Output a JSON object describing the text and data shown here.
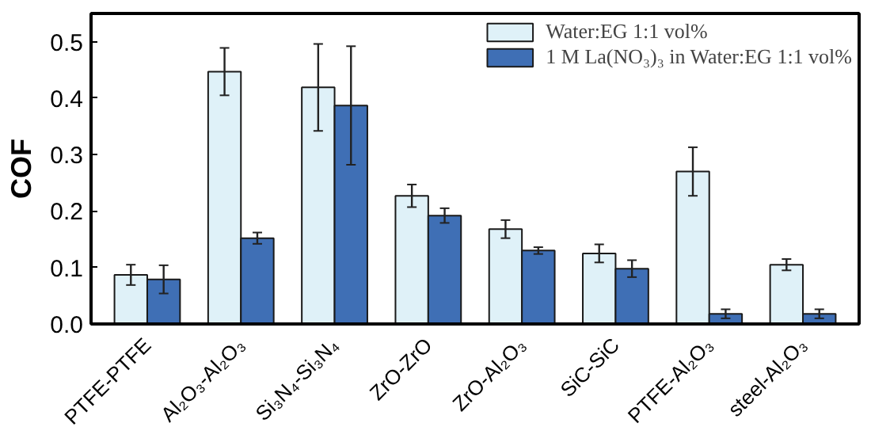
{
  "chart_data": {
    "type": "bar",
    "ylabel": "COF",
    "categories": [
      "PTFE-PTFE",
      "Al₂O₃-Al₂O₃",
      "Si₃N₄-Si₃N₄",
      "ZrO-ZrO",
      "ZrO-Al₂O₃",
      "SiC-SiC",
      "PTFE-Al₂O₃",
      "steel-Al₂O₃"
    ],
    "series": [
      {
        "name": "Water:EG 1:1 vol%",
        "color": "#dff1f8",
        "values": [
          0.087,
          0.447,
          0.419,
          0.227,
          0.168,
          0.125,
          0.27,
          0.105
        ],
        "errors": [
          0.018,
          0.042,
          0.077,
          0.02,
          0.016,
          0.016,
          0.043,
          0.01
        ]
      },
      {
        "name": "1 M La(NO₃)₃ in Water:EG 1:1 vol%",
        "color": "#3f6fb5",
        "values": [
          0.079,
          0.152,
          0.387,
          0.192,
          0.13,
          0.098,
          0.018,
          0.018
        ],
        "errors": [
          0.025,
          0.01,
          0.105,
          0.013,
          0.006,
          0.015,
          0.008,
          0.008
        ]
      }
    ],
    "ylim": [
      0,
      0.55
    ],
    "yticks": [
      {
        "value": 0,
        "label": "0.0"
      },
      0.1,
      0.2,
      0.3,
      0.4,
      0.5
    ],
    "grid": false,
    "legend": "top right"
  }
}
